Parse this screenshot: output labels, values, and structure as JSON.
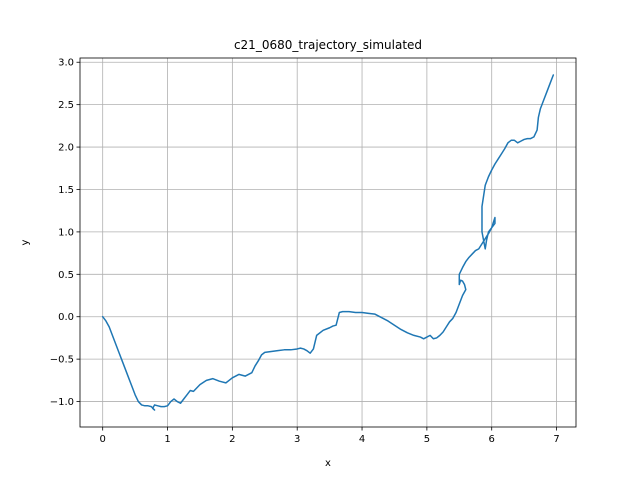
{
  "chart_data": {
    "type": "line",
    "title": "c21_0680_trajectory_simulated",
    "xlabel": "x",
    "ylabel": "y",
    "xlim": [
      -0.35,
      7.3
    ],
    "ylim": [
      -1.3,
      3.05
    ],
    "xticks": [
      0,
      1,
      2,
      3,
      4,
      5,
      6,
      7
    ],
    "yticks": [
      -1.0,
      -0.5,
      0.0,
      0.5,
      1.0,
      1.5,
      2.0,
      2.5,
      3.0
    ],
    "xtick_labels": [
      "0",
      "1",
      "2",
      "3",
      "4",
      "5",
      "6",
      "7"
    ],
    "ytick_labels": [
      "−1.0",
      "−0.5",
      "0.0",
      "0.5",
      "1.0",
      "1.5",
      "2.0",
      "2.5",
      "3.0"
    ],
    "grid": true,
    "line_color": "#1f77b4",
    "series": [
      {
        "x": [
          0.0,
          0.05,
          0.1,
          0.15,
          0.2,
          0.25,
          0.3,
          0.35,
          0.4,
          0.45,
          0.5,
          0.55,
          0.6,
          0.65,
          0.7,
          0.75,
          0.8,
          0.77,
          0.8,
          0.85,
          0.9,
          0.95,
          1.0,
          1.05,
          1.1,
          1.15,
          1.2,
          1.25,
          1.3,
          1.35,
          1.4,
          1.5,
          1.6,
          1.7,
          1.8,
          1.9,
          2.0,
          2.1,
          2.2,
          2.3,
          2.35,
          2.4,
          2.45,
          2.5,
          2.6,
          2.7,
          2.8,
          2.9,
          3.0,
          3.05,
          3.1,
          3.15,
          3.2,
          3.25,
          3.3,
          3.4,
          3.5,
          3.55,
          3.6,
          3.65,
          3.7,
          3.8,
          3.9,
          4.0,
          4.1,
          4.2,
          4.3,
          4.4,
          4.5,
          4.6,
          4.7,
          4.8,
          4.9,
          4.95,
          5.0,
          5.05,
          5.1,
          5.15,
          5.2,
          5.25,
          5.3,
          5.35,
          5.4,
          5.45,
          5.5,
          5.55,
          5.6,
          5.58,
          5.55,
          5.52,
          5.5,
          5.5,
          5.55,
          5.6,
          5.65,
          5.7,
          5.75,
          5.8,
          5.85,
          5.9,
          5.95,
          6.0,
          6.05,
          6.05,
          6.0,
          5.95,
          5.92,
          5.9,
          5.88,
          5.85,
          5.85,
          5.88,
          5.9,
          5.95,
          6.0,
          6.05,
          6.1,
          6.15,
          6.2,
          6.25,
          6.3,
          6.35,
          6.4,
          6.45,
          6.5,
          6.55,
          6.6,
          6.65,
          6.7,
          6.72,
          6.75,
          6.8,
          6.85,
          6.9,
          6.95
        ],
        "y": [
          0.0,
          -0.05,
          -0.12,
          -0.22,
          -0.32,
          -0.42,
          -0.52,
          -0.62,
          -0.72,
          -0.82,
          -0.92,
          -1.0,
          -1.04,
          -1.05,
          -1.05,
          -1.06,
          -1.1,
          -1.08,
          -1.04,
          -1.05,
          -1.06,
          -1.06,
          -1.05,
          -1.0,
          -0.97,
          -1.0,
          -1.02,
          -0.97,
          -0.92,
          -0.87,
          -0.88,
          -0.8,
          -0.75,
          -0.73,
          -0.76,
          -0.78,
          -0.72,
          -0.68,
          -0.7,
          -0.66,
          -0.58,
          -0.52,
          -0.45,
          -0.42,
          -0.41,
          -0.4,
          -0.39,
          -0.39,
          -0.38,
          -0.37,
          -0.38,
          -0.4,
          -0.43,
          -0.38,
          -0.22,
          -0.16,
          -0.13,
          -0.11,
          -0.1,
          0.05,
          0.06,
          0.06,
          0.05,
          0.05,
          0.04,
          0.03,
          -0.01,
          -0.05,
          -0.1,
          -0.15,
          -0.19,
          -0.22,
          -0.24,
          -0.26,
          -0.24,
          -0.22,
          -0.26,
          -0.25,
          -0.22,
          -0.18,
          -0.12,
          -0.06,
          -0.02,
          0.05,
          0.15,
          0.25,
          0.32,
          0.38,
          0.42,
          0.43,
          0.38,
          0.5,
          0.58,
          0.65,
          0.7,
          0.74,
          0.78,
          0.8,
          0.86,
          0.92,
          0.98,
          1.05,
          1.1,
          1.17,
          1.05,
          1.0,
          0.9,
          0.8,
          0.88,
          1.0,
          1.3,
          1.45,
          1.55,
          1.65,
          1.73,
          1.8,
          1.86,
          1.92,
          1.98,
          2.05,
          2.08,
          2.08,
          2.05,
          2.07,
          2.09,
          2.1,
          2.1,
          2.12,
          2.2,
          2.35,
          2.45,
          2.55,
          2.65,
          2.75,
          2.85
        ]
      }
    ]
  }
}
